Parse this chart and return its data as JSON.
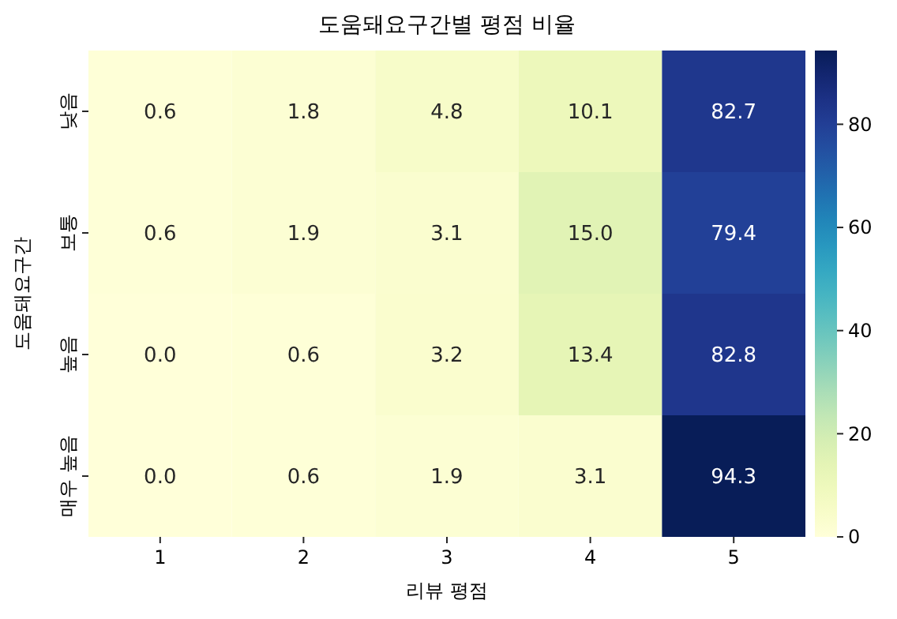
{
  "chart_data": {
    "type": "heatmap",
    "title": "도움돼요구간별 평점 비율",
    "xlabel": "리뷰 평점",
    "ylabel": "도움돼요구간",
    "categories": [
      "1",
      "2",
      "3",
      "4",
      "5"
    ],
    "y_categories": [
      "낮음",
      "보통",
      "높음",
      "매우 높음"
    ],
    "cells": [
      [
        0.6,
        1.8,
        4.8,
        10.1,
        82.7
      ],
      [
        0.6,
        1.9,
        3.1,
        15.0,
        79.4
      ],
      [
        0.0,
        0.6,
        3.2,
        13.4,
        82.8
      ],
      [
        0.0,
        0.6,
        1.9,
        3.1,
        94.3
      ]
    ],
    "cell_labels": [
      [
        "0.6",
        "1.8",
        "4.8",
        "10.1",
        "82.7"
      ],
      [
        "0.6",
        "1.9",
        "3.1",
        "15.0",
        "79.4"
      ],
      [
        "0.0",
        "0.6",
        "3.2",
        "13.4",
        "82.8"
      ],
      [
        "0.0",
        "0.6",
        "1.9",
        "3.1",
        "94.3"
      ]
    ],
    "clim": [
      0,
      94.3
    ],
    "cticks": [
      0,
      20,
      40,
      60,
      80
    ]
  }
}
